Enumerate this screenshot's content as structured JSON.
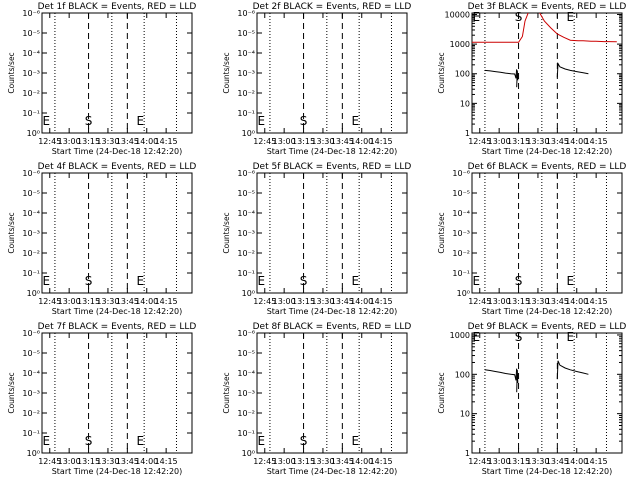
{
  "chart_data": [
    {
      "title": "Det 1f BLACK = Events, RED = LLD",
      "type": "line",
      "yticks": [
        "10⁰",
        "10⁻¹",
        "10⁻²",
        "10⁻³",
        "10⁻⁴",
        "10⁻⁵",
        "10⁻⁶"
      ],
      "ylabel": "Counts/sec",
      "xticks": [
        "12:45",
        "13:00",
        "13:15",
        "13:30",
        "13:45",
        "14:00",
        "14:15"
      ],
      "xlabel": "Start Time (24-Dec-18 12:42:20)",
      "markers": [
        "E",
        "S",
        "E"
      ],
      "series": []
    },
    {
      "title": "Det 2f BLACK = Events, RED = LLD",
      "type": "line",
      "yticks": [
        "10⁰",
        "10⁻¹",
        "10⁻²",
        "10⁻³",
        "10⁻⁴",
        "10⁻⁵",
        "10⁻⁶"
      ],
      "ylabel": "Counts/sec",
      "xticks": [
        "12:45",
        "13:00",
        "13:15",
        "13:30",
        "13:45",
        "14:00",
        "14:15"
      ],
      "xlabel": "Start Time (24-Dec-18 12:42:20)",
      "markers": [
        "E",
        "S",
        "E"
      ],
      "series": []
    },
    {
      "title": "Det 3f BLACK = Events, RED = LLD",
      "type": "line",
      "yticks": [
        "1",
        "10",
        "100",
        "1000",
        "10000"
      ],
      "ylabel": "Counts/sec",
      "xticks": [
        "12:45",
        "13:00",
        "13:15",
        "13:30",
        "13:45",
        "14:00",
        "14:15"
      ],
      "xlabel": "Start Time (24-Dec-18 12:42:20)",
      "markers": [
        "E",
        "S",
        "E"
      ],
      "series": [
        {
          "color": "#cc0000",
          "x": [
            -6,
            12,
            25,
            30,
            33,
            35,
            38,
            42,
            46,
            50,
            55,
            60,
            65,
            70,
            76,
            80,
            86,
            90,
            96,
            100,
            106
          ],
          "y": [
            1150,
            1150,
            1150,
            1150,
            1800,
            6000,
            13000,
            20000,
            12000,
            6000,
            3500,
            2200,
            1700,
            1350,
            1300,
            1300,
            1250,
            1250,
            1220,
            1220,
            1200
          ]
        },
        {
          "color": "#000000",
          "x": [
            4,
            8,
            12,
            16,
            20,
            24,
            27,
            28,
            28.5
          ],
          "y": [
            130,
            125,
            118,
            112,
            105,
            100,
            98,
            70,
            140
          ]
        },
        {
          "color": "#000000",
          "x": [
            28.6,
            29,
            29.4
          ],
          "y": [
            35,
            130,
            60
          ]
        },
        {
          "color": "#000000",
          "x": [
            60,
            60.5,
            62,
            66,
            70,
            75,
            80,
            84
          ],
          "y": [
            75,
            220,
            170,
            145,
            130,
            118,
            108,
            100
          ]
        }
      ]
    },
    {
      "title": "Det 4f BLACK = Events, RED = LLD",
      "type": "line",
      "yticks": [
        "10⁰",
        "10⁻¹",
        "10⁻²",
        "10⁻³",
        "10⁻⁴",
        "10⁻⁵",
        "10⁻⁶"
      ],
      "ylabel": "Counts/sec",
      "xticks": [
        "12:45",
        "13:00",
        "13:15",
        "13:30",
        "13:45",
        "14:00",
        "14:15"
      ],
      "xlabel": "Start Time (24-Dec-18 12:42:20)",
      "markers": [
        "E",
        "S",
        "E"
      ],
      "series": []
    },
    {
      "title": "Det 5f BLACK = Events, RED = LLD",
      "type": "line",
      "yticks": [
        "10⁰",
        "10⁻¹",
        "10⁻²",
        "10⁻³",
        "10⁻⁴",
        "10⁻⁵",
        "10⁻⁶"
      ],
      "ylabel": "Counts/sec",
      "xticks": [
        "12:45",
        "13:00",
        "13:15",
        "13:30",
        "13:45",
        "14:00",
        "14:15"
      ],
      "xlabel": "Start Time (24-Dec-18 12:42:20)",
      "markers": [
        "E",
        "S",
        "E"
      ],
      "series": []
    },
    {
      "title": "Det 6f BLACK = Events, RED = LLD",
      "type": "line",
      "yticks": [
        "10⁰",
        "10⁻¹",
        "10⁻²",
        "10⁻³",
        "10⁻⁴",
        "10⁻⁵",
        "10⁻⁶"
      ],
      "ylabel": "Counts/sec",
      "xticks": [
        "12:45",
        "13:00",
        "13:15",
        "13:30",
        "13:45",
        "14:00",
        "14:15"
      ],
      "xlabel": "Start Time (24-Dec-18 12:42:20)",
      "markers": [
        "E",
        "S",
        "E"
      ],
      "series": []
    },
    {
      "title": "Det 7f BLACK = Events, RED = LLD",
      "type": "line",
      "yticks": [
        "10⁰",
        "10⁻¹",
        "10⁻²",
        "10⁻³",
        "10⁻⁴",
        "10⁻⁵",
        "10⁻⁶"
      ],
      "ylabel": "Counts/sec",
      "xticks": [
        "12:45",
        "13:00",
        "13:15",
        "13:30",
        "13:45",
        "14:00",
        "14:15"
      ],
      "xlabel": "Start Time (24-Dec-18 12:42:20)",
      "markers": [
        "E",
        "S",
        "E"
      ],
      "series": []
    },
    {
      "title": "Det 8f BLACK = Events, RED = LLD",
      "type": "line",
      "yticks": [
        "10⁰",
        "10⁻¹",
        "10⁻²",
        "10⁻³",
        "10⁻⁴",
        "10⁻⁵",
        "10⁻⁶"
      ],
      "ylabel": "Counts/sec",
      "xticks": [
        "12:45",
        "13:00",
        "13:15",
        "13:30",
        "13:45",
        "14:00",
        "14:15"
      ],
      "xlabel": "Start Time (24-Dec-18 12:42:20)",
      "markers": [
        "E",
        "S",
        "E"
      ],
      "series": []
    },
    {
      "title": "Det 9f BLACK = Events, RED = LLD",
      "type": "line",
      "yticks": [
        "1",
        "10",
        "100",
        "1000"
      ],
      "ylabel": "Counts/sec",
      "xticks": [
        "12:45",
        "13:00",
        "13:15",
        "13:30",
        "13:45",
        "14:00",
        "14:15"
      ],
      "xlabel": "Start Time (24-Dec-18 12:42:20)",
      "markers": [
        "E",
        "S",
        "E"
      ],
      "series": [
        {
          "color": "#000000",
          "x": [
            4,
            8,
            12,
            16,
            20,
            24,
            27,
            28,
            28.5
          ],
          "y": [
            130,
            125,
            118,
            112,
            105,
            100,
            98,
            70,
            140
          ]
        },
        {
          "color": "#000000",
          "x": [
            28.6,
            29,
            29.4
          ],
          "y": [
            35,
            130,
            60
          ]
        },
        {
          "color": "#000000",
          "x": [
            60,
            60.5,
            62,
            66,
            70,
            75,
            80,
            84
          ],
          "y": [
            75,
            220,
            170,
            145,
            130,
            118,
            108,
            100
          ]
        }
      ]
    }
  ]
}
